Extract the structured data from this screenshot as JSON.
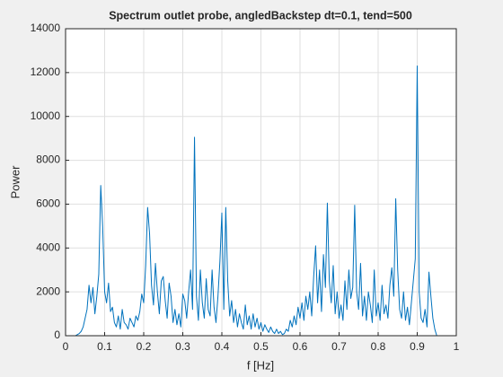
{
  "chart_data": {
    "type": "line",
    "title": "Spectrum outlet probe, angledBackstep dt=0.1, tend=500",
    "xlabel": "f [Hz]",
    "ylabel": "Power",
    "color": "#0072bd",
    "grid": true,
    "xlim": [
      0,
      1
    ],
    "ylim": [
      0,
      14000
    ],
    "xticks": [
      0,
      0.1,
      0.2,
      0.3,
      0.4,
      0.5,
      0.6,
      0.7,
      0.8,
      0.9,
      1
    ],
    "yticks": [
      0,
      2000,
      4000,
      6000,
      8000,
      10000,
      12000,
      14000
    ],
    "x": [
      0,
      0.005,
      0.01,
      0.015,
      0.02,
      0.025,
      0.03,
      0.035,
      0.04,
      0.045,
      0.05,
      0.055,
      0.06,
      0.065,
      0.07,
      0.075,
      0.08,
      0.085,
      0.09,
      0.095,
      0.1,
      0.105,
      0.11,
      0.115,
      0.12,
      0.125,
      0.13,
      0.135,
      0.14,
      0.145,
      0.15,
      0.155,
      0.16,
      0.165,
      0.17,
      0.175,
      0.18,
      0.185,
      0.19,
      0.195,
      0.2,
      0.205,
      0.21,
      0.215,
      0.22,
      0.225,
      0.23,
      0.235,
      0.24,
      0.245,
      0.25,
      0.255,
      0.26,
      0.265,
      0.27,
      0.275,
      0.28,
      0.285,
      0.29,
      0.295,
      0.3,
      0.305,
      0.31,
      0.315,
      0.32,
      0.325,
      0.33,
      0.335,
      0.34,
      0.345,
      0.35,
      0.355,
      0.36,
      0.365,
      0.37,
      0.375,
      0.38,
      0.385,
      0.39,
      0.395,
      0.4,
      0.405,
      0.41,
      0.415,
      0.42,
      0.425,
      0.43,
      0.435,
      0.44,
      0.445,
      0.45,
      0.455,
      0.46,
      0.465,
      0.47,
      0.475,
      0.48,
      0.485,
      0.49,
      0.495,
      0.5,
      0.505,
      0.51,
      0.515,
      0.52,
      0.525,
      0.53,
      0.535,
      0.54,
      0.545,
      0.55,
      0.555,
      0.56,
      0.565,
      0.57,
      0.575,
      0.58,
      0.585,
      0.59,
      0.595,
      0.6,
      0.605,
      0.61,
      0.615,
      0.62,
      0.625,
      0.63,
      0.635,
      0.64,
      0.645,
      0.65,
      0.655,
      0.66,
      0.665,
      0.67,
      0.675,
      0.68,
      0.685,
      0.69,
      0.695,
      0.7,
      0.705,
      0.71,
      0.715,
      0.72,
      0.725,
      0.73,
      0.735,
      0.74,
      0.745,
      0.75,
      0.755,
      0.76,
      0.765,
      0.77,
      0.775,
      0.78,
      0.785,
      0.79,
      0.795,
      0.8,
      0.805,
      0.81,
      0.815,
      0.82,
      0.825,
      0.83,
      0.835,
      0.84,
      0.845,
      0.85,
      0.855,
      0.86,
      0.865,
      0.87,
      0.875,
      0.88,
      0.885,
      0.89,
      0.895,
      0.9,
      0.905,
      0.91,
      0.915,
      0.92,
      0.925,
      0.93,
      0.935,
      0.94,
      0.945,
      0.95
    ],
    "values": [
      0,
      0,
      0,
      0,
      0,
      0,
      50,
      100,
      200,
      400,
      800,
      1200,
      2300,
      1500,
      2200,
      1000,
      1800,
      2800,
      6850,
      4950,
      2000,
      1500,
      2400,
      1100,
      1300,
      600,
      400,
      900,
      300,
      1200,
      600,
      500,
      300,
      800,
      600,
      400,
      900,
      700,
      1100,
      1900,
      1500,
      3200,
      5850,
      4650,
      2300,
      1400,
      3300,
      2000,
      1000,
      2500,
      2700,
      1600,
      800,
      2400,
      1800,
      600,
      1200,
      500,
      1000,
      400,
      1900,
      1600,
      800,
      2000,
      3000,
      1200,
      9050,
      1800,
      700,
      3000,
      1500,
      800,
      2600,
      1200,
      900,
      3000,
      1300,
      600,
      1800,
      3400,
      5600,
      1200,
      5850,
      2500,
      900,
      1600,
      600,
      1200,
      400,
      1000,
      600,
      300,
      1400,
      500,
      900,
      300,
      1000,
      400,
      800,
      300,
      600,
      200,
      500,
      300,
      150,
      400,
      200,
      100,
      300,
      100,
      200,
      50,
      100,
      300,
      200,
      700,
      400,
      900,
      500,
      1300,
      800,
      1500,
      700,
      1800,
      1200,
      2000,
      900,
      2700,
      4100,
      1500,
      3000,
      1100,
      3700,
      2200,
      6050,
      2500,
      1500,
      3200,
      1000,
      2000,
      800,
      1400,
      700,
      2500,
      1200,
      3000,
      1700,
      2200,
      5950,
      2000,
      1200,
      3300,
      900,
      1800,
      700,
      2000,
      1400,
      600,
      3000,
      900,
      1500,
      700,
      2300,
      1000,
      1400,
      800,
      2300,
      3100,
      1800,
      6250,
      3000,
      1200,
      800,
      2000,
      700,
      1300,
      500,
      1500,
      2500,
      3500,
      12300,
      2000,
      800,
      600,
      1200,
      400,
      2900,
      1800,
      800,
      300,
      0
    ]
  }
}
